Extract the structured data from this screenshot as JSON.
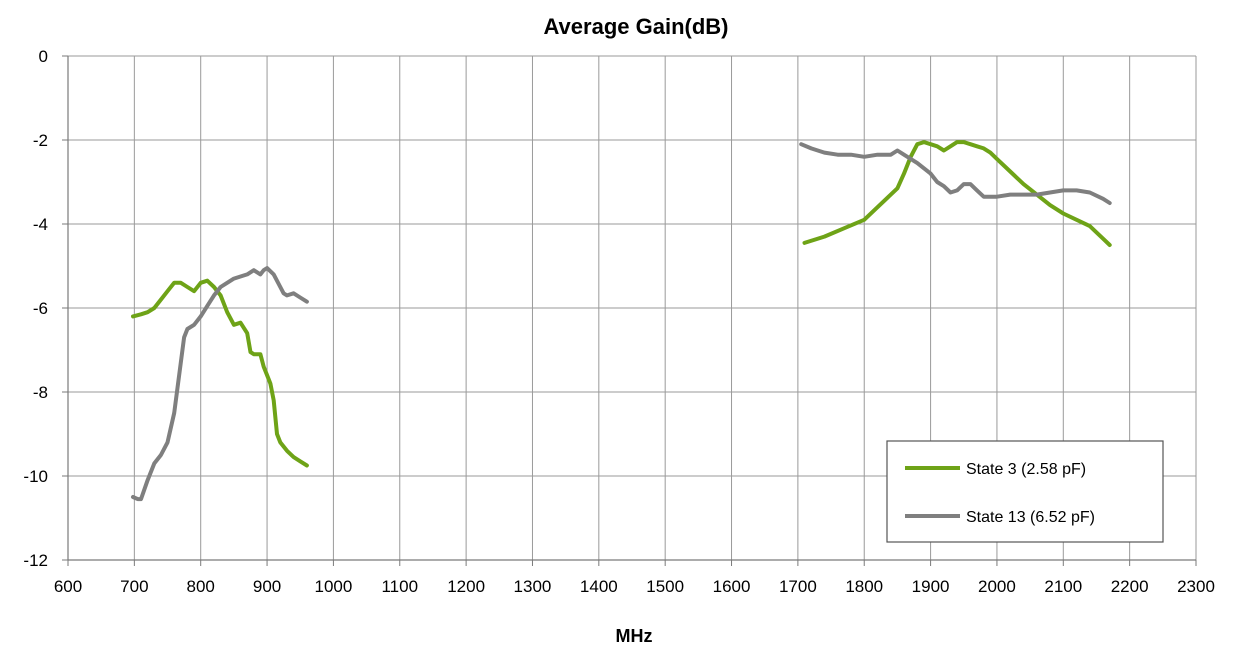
{
  "chart_data": {
    "type": "line",
    "title": "Average Gain(dB)",
    "xlabel": "MHz",
    "ylabel": "",
    "xlim": [
      600,
      2300
    ],
    "ylim": [
      -12,
      0
    ],
    "xticks": [
      600,
      700,
      800,
      900,
      1000,
      1100,
      1200,
      1300,
      1400,
      1500,
      1600,
      1700,
      1800,
      1900,
      2000,
      2100,
      2200,
      2300
    ],
    "yticks": [
      0,
      -2,
      -4,
      -6,
      -8,
      -10,
      -12
    ],
    "grid": true,
    "legend_position": "bottom-right",
    "series": [
      {
        "name": "State 3 (2.58 pF)",
        "color": "#6ea317",
        "segments": [
          [
            [
              698,
              -6.2
            ],
            [
              710,
              -6.15
            ],
            [
              720,
              -6.1
            ],
            [
              730,
              -6.0
            ],
            [
              740,
              -5.8
            ],
            [
              750,
              -5.6
            ],
            [
              760,
              -5.4
            ],
            [
              770,
              -5.4
            ],
            [
              780,
              -5.5
            ],
            [
              790,
              -5.6
            ],
            [
              800,
              -5.4
            ],
            [
              810,
              -5.35
            ],
            [
              820,
              -5.5
            ],
            [
              830,
              -5.7
            ],
            [
              840,
              -6.1
            ],
            [
              850,
              -6.4
            ],
            [
              860,
              -6.35
            ],
            [
              870,
              -6.6
            ],
            [
              875,
              -7.05
            ],
            [
              880,
              -7.1
            ],
            [
              890,
              -7.1
            ],
            [
              895,
              -7.4
            ],
            [
              900,
              -7.6
            ],
            [
              905,
              -7.8
            ],
            [
              910,
              -8.2
            ],
            [
              915,
              -9.0
            ],
            [
              920,
              -9.2
            ],
            [
              930,
              -9.4
            ],
            [
              940,
              -9.55
            ],
            [
              950,
              -9.65
            ],
            [
              960,
              -9.75
            ]
          ],
          [
            [
              1710,
              -4.45
            ],
            [
              1740,
              -4.3
            ],
            [
              1770,
              -4.1
            ],
            [
              1800,
              -3.9
            ],
            [
              1820,
              -3.6
            ],
            [
              1840,
              -3.3
            ],
            [
              1850,
              -3.15
            ],
            [
              1860,
              -2.8
            ],
            [
              1870,
              -2.4
            ],
            [
              1880,
              -2.1
            ],
            [
              1890,
              -2.05
            ],
            [
              1900,
              -2.1
            ],
            [
              1910,
              -2.15
            ],
            [
              1920,
              -2.25
            ],
            [
              1930,
              -2.15
            ],
            [
              1940,
              -2.05
            ],
            [
              1950,
              -2.05
            ],
            [
              1960,
              -2.1
            ],
            [
              1970,
              -2.15
            ],
            [
              1980,
              -2.2
            ],
            [
              1990,
              -2.3
            ],
            [
              2000,
              -2.45
            ],
            [
              2020,
              -2.75
            ],
            [
              2040,
              -3.05
            ],
            [
              2060,
              -3.3
            ],
            [
              2080,
              -3.55
            ],
            [
              2100,
              -3.75
            ],
            [
              2120,
              -3.9
            ],
            [
              2140,
              -4.05
            ],
            [
              2150,
              -4.2
            ],
            [
              2160,
              -4.35
            ],
            [
              2170,
              -4.5
            ]
          ]
        ]
      },
      {
        "name": "State 13 (6.52 pF)",
        "color": "#7f7f7f",
        "segments": [
          [
            [
              698,
              -10.5
            ],
            [
              705,
              -10.55
            ],
            [
              710,
              -10.55
            ],
            [
              720,
              -10.1
            ],
            [
              730,
              -9.7
            ],
            [
              740,
              -9.5
            ],
            [
              750,
              -9.2
            ],
            [
              760,
              -8.5
            ],
            [
              770,
              -7.3
            ],
            [
              775,
              -6.7
            ],
            [
              780,
              -6.5
            ],
            [
              790,
              -6.4
            ],
            [
              800,
              -6.2
            ],
            [
              810,
              -5.95
            ],
            [
              820,
              -5.7
            ],
            [
              830,
              -5.5
            ],
            [
              840,
              -5.4
            ],
            [
              850,
              -5.3
            ],
            [
              860,
              -5.25
            ],
            [
              870,
              -5.2
            ],
            [
              880,
              -5.1
            ],
            [
              885,
              -5.15
            ],
            [
              890,
              -5.2
            ],
            [
              895,
              -5.1
            ],
            [
              900,
              -5.05
            ],
            [
              910,
              -5.2
            ],
            [
              920,
              -5.5
            ],
            [
              925,
              -5.65
            ],
            [
              930,
              -5.7
            ],
            [
              940,
              -5.65
            ],
            [
              950,
              -5.75
            ],
            [
              960,
              -5.85
            ]
          ],
          [
            [
              1705,
              -2.1
            ],
            [
              1720,
              -2.2
            ],
            [
              1740,
              -2.3
            ],
            [
              1760,
              -2.35
            ],
            [
              1780,
              -2.35
            ],
            [
              1800,
              -2.4
            ],
            [
              1820,
              -2.35
            ],
            [
              1840,
              -2.35
            ],
            [
              1850,
              -2.25
            ],
            [
              1860,
              -2.35
            ],
            [
              1880,
              -2.55
            ],
            [
              1900,
              -2.8
            ],
            [
              1910,
              -3.0
            ],
            [
              1920,
              -3.1
            ],
            [
              1930,
              -3.25
            ],
            [
              1940,
              -3.2
            ],
            [
              1950,
              -3.05
            ],
            [
              1960,
              -3.05
            ],
            [
              1970,
              -3.2
            ],
            [
              1980,
              -3.35
            ],
            [
              2000,
              -3.35
            ],
            [
              2020,
              -3.3
            ],
            [
              2060,
              -3.3
            ],
            [
              2080,
              -3.25
            ],
            [
              2100,
              -3.2
            ],
            [
              2120,
              -3.2
            ],
            [
              2140,
              -3.25
            ],
            [
              2160,
              -3.4
            ],
            [
              2170,
              -3.5
            ]
          ]
        ]
      }
    ]
  }
}
